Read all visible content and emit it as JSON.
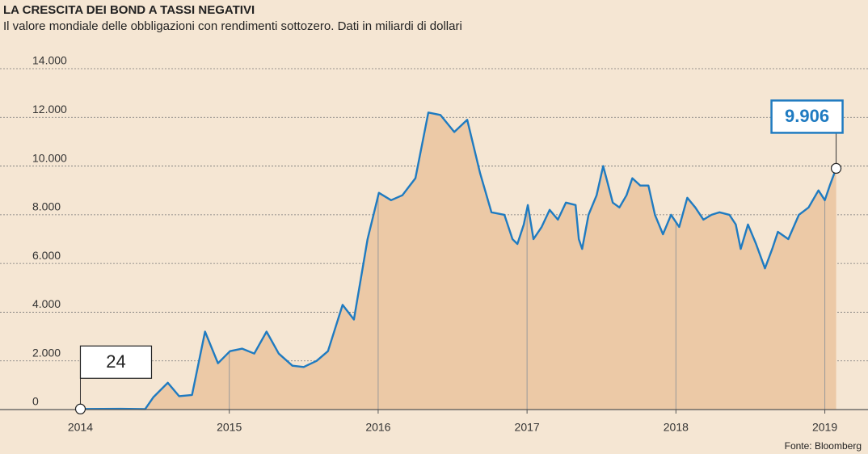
{
  "chart_data": {
    "type": "area",
    "title": "LA CRESCITA DEI BOND A TASSI NEGATIVI",
    "subtitle": "Il valore mondiale delle obbligazioni con rendimenti sottozero. Dati in miliardi di dollari",
    "source": "Fonte: Bloomberg",
    "xlim": [
      2013.46,
      2019.29
    ],
    "xticks": [
      2014,
      2015,
      2016,
      2017,
      2018,
      2019
    ],
    "ylim": [
      0,
      14000
    ],
    "yticks": [
      0,
      {
        "value": 2000,
        "label": "2.000"
      },
      {
        "value": 4000,
        "label": "4.000"
      },
      {
        "value": 6000,
        "label": "6.000"
      },
      {
        "value": 8000,
        "label": "8.000"
      },
      {
        "value": 10000,
        "label": "10.000"
      },
      {
        "value": 12000,
        "label": "12.000"
      },
      {
        "value": 14000,
        "label": "14.000"
      }
    ],
    "grid": true,
    "series": [
      {
        "color": "#1f7bc1",
        "fill": "#ecc9a6",
        "x": [
          2014.0,
          2014.272,
          2014.435,
          2014.489,
          2014.587,
          2014.663,
          2014.75,
          2014.837,
          2014.924,
          2015.005,
          2015.087,
          2015.168,
          2015.25,
          2015.332,
          2015.424,
          2015.5,
          2015.587,
          2015.663,
          2015.761,
          2015.837,
          2015.929,
          2016.005,
          2016.087,
          2016.163,
          2016.25,
          2016.337,
          2016.418,
          2016.511,
          2016.598,
          2016.685,
          2016.761,
          2016.848,
          2016.902,
          2016.935,
          2016.978,
          2017.005,
          2017.043,
          2017.098,
          2017.152,
          2017.207,
          2017.261,
          2017.326,
          2017.348,
          2017.37,
          2017.413,
          2017.467,
          2017.511,
          2017.533,
          2017.576,
          2017.62,
          2017.668,
          2017.707,
          2017.761,
          2017.815,
          2017.859,
          2017.913,
          2017.967,
          2018.022,
          2018.076,
          2018.13,
          2018.185,
          2018.239,
          2018.293,
          2018.359,
          2018.402,
          2018.435,
          2018.484,
          2018.538,
          2018.598,
          2018.647,
          2018.685,
          2018.755,
          2018.826,
          2018.891,
          2018.957,
          2019.0,
          2019.033,
          2019.076
        ],
        "values": [
          24,
          30,
          20,
          500,
          1100,
          550,
          600,
          3200,
          1900,
          2400,
          2500,
          2300,
          3200,
          2300,
          1800,
          1750,
          2000,
          2400,
          4300,
          3700,
          7000,
          8900,
          8600,
          8800,
          9500,
          12200,
          12100,
          11400,
          11900,
          9700,
          8100,
          8000,
          7000,
          6800,
          7600,
          8400,
          7000,
          7500,
          8200,
          7800,
          8500,
          8400,
          7000,
          6600,
          8000,
          8800,
          10000,
          9500,
          8500,
          8300,
          8800,
          9500,
          9200,
          9200,
          8000,
          7200,
          8000,
          7500,
          8700,
          8300,
          7800,
          8000,
          8100,
          8000,
          7600,
          6600,
          7600,
          6800,
          5800,
          6600,
          7300,
          7000,
          8000,
          8300,
          9000,
          8600,
          9200,
          9906
        ]
      }
    ],
    "highlights": [
      {
        "x": 2014.0,
        "value": 24,
        "label": "24",
        "color": "#222222"
      },
      {
        "x": 2019.076,
        "value": 9906,
        "label": "9.906",
        "color": "#1f7bc1"
      }
    ]
  }
}
